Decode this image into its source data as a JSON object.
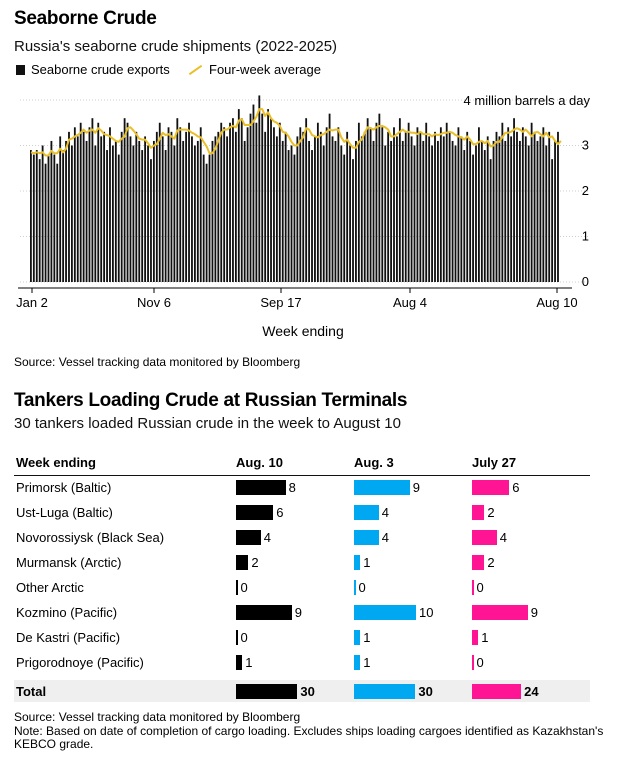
{
  "chart_data": [
    {
      "type": "bar",
      "title": "Seaborne Crude",
      "subtitle": "Russia's seaborne crude shipments (2022-2025)",
      "xlabel": "Week ending",
      "ylabel": "4 million barrels a day",
      "ylim": [
        0,
        4
      ],
      "y_ticks": [
        "0",
        "1",
        "2",
        "3"
      ],
      "x_ticks": [
        "Jan 2",
        "Nov 6",
        "Sep 17",
        "Aug 4",
        "Aug 10"
      ],
      "grid": true,
      "legend_position": "top-left",
      "series": [
        {
          "name": "Seaborne crude exports",
          "kind": "bar",
          "color": "#111111",
          "values": [
            2.9,
            2.8,
            2.9,
            2.7,
            3.0,
            2.6,
            2.8,
            3.1,
            2.8,
            2.6,
            3.2,
            2.9,
            3.1,
            3.3,
            3.0,
            3.4,
            3.2,
            3.5,
            3.3,
            3.1,
            3.4,
            3.6,
            3.0,
            3.5,
            3.2,
            3.3,
            2.9,
            3.4,
            3.0,
            3.1,
            2.8,
            3.3,
            3.6,
            3.5,
            3.2,
            3.0,
            3.3,
            3.1,
            2.9,
            3.2,
            3.0,
            2.7,
            3.1,
            3.3,
            3.5,
            3.2,
            2.9,
            3.4,
            3.3,
            3.0,
            3.6,
            3.4,
            3.1,
            3.3,
            3.5,
            3.2,
            3.0,
            3.1,
            3.4,
            2.8,
            2.6,
            2.8,
            3.1,
            3.2,
            3.3,
            3.5,
            3.4,
            3.2,
            3.5,
            3.6,
            3.3,
            3.8,
            3.6,
            3.1,
            3.4,
            3.7,
            3.9,
            3.5,
            4.1,
            3.7,
            3.3,
            3.8,
            3.6,
            3.4,
            3.2,
            3.5,
            3.1,
            3.3,
            2.9,
            3.0,
            2.8,
            3.2,
            3.4,
            3.3,
            3.6,
            3.1,
            2.9,
            3.2,
            3.5,
            3.3,
            3.0,
            3.4,
            3.7,
            3.2,
            3.1,
            3.4,
            3.0,
            2.8,
            3.3,
            3.0,
            2.7,
            3.1,
            3.5,
            3.2,
            3.3,
            3.6,
            3.4,
            3.1,
            3.5,
            3.7,
            3.4,
            3.0,
            3.3,
            3.1,
            3.4,
            3.2,
            3.6,
            3.1,
            3.3,
            3.5,
            3.2,
            3.0,
            3.4,
            3.3,
            3.1,
            3.5,
            3.2,
            3.0,
            3.3,
            3.1,
            3.4,
            3.2,
            3.5,
            3.3,
            3.1,
            3.0,
            3.4,
            3.2,
            2.9,
            3.3,
            3.1,
            2.8,
            3.0,
            3.4,
            3.1,
            2.9,
            3.2,
            2.7,
            3.1,
            3.3,
            3.2,
            3.5,
            3.1,
            3.4,
            3.2,
            3.6,
            3.3,
            3.1,
            3.4,
            3.2,
            3.0,
            3.5,
            3.3,
            3.1,
            3.2,
            3.4,
            3.0,
            3.3,
            2.7,
            3.1,
            3.3
          ]
        },
        {
          "name": "Four-week average",
          "kind": "line",
          "color": "#e9bf2a",
          "values": [
            2.85,
            2.83,
            2.85,
            2.83,
            2.85,
            2.78,
            2.78,
            2.88,
            2.83,
            2.83,
            2.93,
            2.85,
            2.93,
            3.13,
            3.15,
            3.2,
            3.23,
            3.28,
            3.35,
            3.28,
            3.33,
            3.35,
            3.28,
            3.38,
            3.33,
            3.25,
            3.23,
            3.2,
            3.15,
            3.1,
            3.08,
            3.15,
            3.2,
            3.38,
            3.4,
            3.33,
            3.25,
            3.15,
            3.13,
            3.13,
            3.05,
            2.95,
            3.0,
            3.03,
            3.15,
            3.28,
            3.23,
            3.25,
            3.2,
            3.15,
            3.33,
            3.35,
            3.35,
            3.35,
            3.33,
            3.28,
            3.25,
            3.2,
            3.18,
            3.08,
            2.98,
            2.83,
            2.83,
            2.93,
            3.1,
            3.28,
            3.35,
            3.35,
            3.4,
            3.43,
            3.4,
            3.55,
            3.58,
            3.45,
            3.45,
            3.45,
            3.53,
            3.63,
            3.8,
            3.8,
            3.65,
            3.73,
            3.6,
            3.53,
            3.5,
            3.43,
            3.3,
            3.28,
            3.2,
            3.08,
            3.0,
            3.0,
            3.1,
            3.18,
            3.38,
            3.35,
            3.23,
            3.2,
            3.18,
            3.23,
            3.25,
            3.3,
            3.35,
            3.33,
            3.35,
            3.35,
            3.18,
            3.08,
            3.13,
            3.03,
            2.95,
            2.95,
            3.08,
            3.13,
            3.28,
            3.4,
            3.38,
            3.35,
            3.4,
            3.43,
            3.43,
            3.4,
            3.35,
            3.2,
            3.2,
            3.25,
            3.3,
            3.35,
            3.3,
            3.3,
            3.28,
            3.28,
            3.25,
            3.3,
            3.25,
            3.25,
            3.25,
            3.2,
            3.25,
            3.23,
            3.25,
            3.28,
            3.28,
            3.3,
            3.28,
            3.23,
            3.2,
            3.18,
            3.13,
            3.2,
            3.13,
            3.03,
            3.03,
            3.08,
            3.1,
            3.05,
            3.1,
            2.98,
            3.0,
            3.08,
            3.08,
            3.18,
            3.28,
            3.28,
            3.3,
            3.35,
            3.38,
            3.35,
            3.3,
            3.35,
            3.28,
            3.2,
            3.28,
            3.3,
            3.25,
            3.2,
            3.28,
            3.18,
            3.2,
            3.1,
            3.03,
            3.1
          ]
        }
      ]
    },
    {
      "type": "table",
      "title": "Tankers Loading Crude at Russian Terminals",
      "subtitle": "30 tankers loaded Russian crude in the week to August 10",
      "header": {
        "label": "Week ending",
        "columns": [
          "Aug. 10",
          "Aug. 3",
          "July 27"
        ]
      },
      "column_colors": [
        "#000000",
        "#00a8f2",
        "#ff1493"
      ],
      "rows": [
        {
          "name": "Primorsk (Baltic)",
          "values": [
            8,
            9,
            6
          ]
        },
        {
          "name": "Ust-Luga (Baltic)",
          "values": [
            6,
            4,
            2
          ]
        },
        {
          "name": "Novorossiysk (Black Sea)",
          "values": [
            4,
            4,
            4
          ]
        },
        {
          "name": "Murmansk (Arctic)",
          "values": [
            2,
            1,
            2
          ]
        },
        {
          "name": "Other Arctic",
          "values": [
            0,
            0,
            0
          ]
        },
        {
          "name": "Kozmino (Pacific)",
          "values": [
            9,
            10,
            9
          ]
        },
        {
          "name": "De Kastri (Pacific)",
          "values": [
            0,
            1,
            1
          ]
        },
        {
          "name": "Prigorodnoye (Pacific)",
          "values": [
            1,
            1,
            0
          ]
        }
      ],
      "total": {
        "name": "Total",
        "values": [
          30,
          30,
          24
        ]
      }
    }
  ],
  "texts": {
    "source1": "Source: Vessel tracking data monitored by Bloomberg",
    "source2": "Source: Vessel tracking data monitored by Bloomberg",
    "note": "Note: Based on date of completion of cargo loading. Excludes ships loading cargoes identified as Kazakhstan's KEBCO grade."
  }
}
